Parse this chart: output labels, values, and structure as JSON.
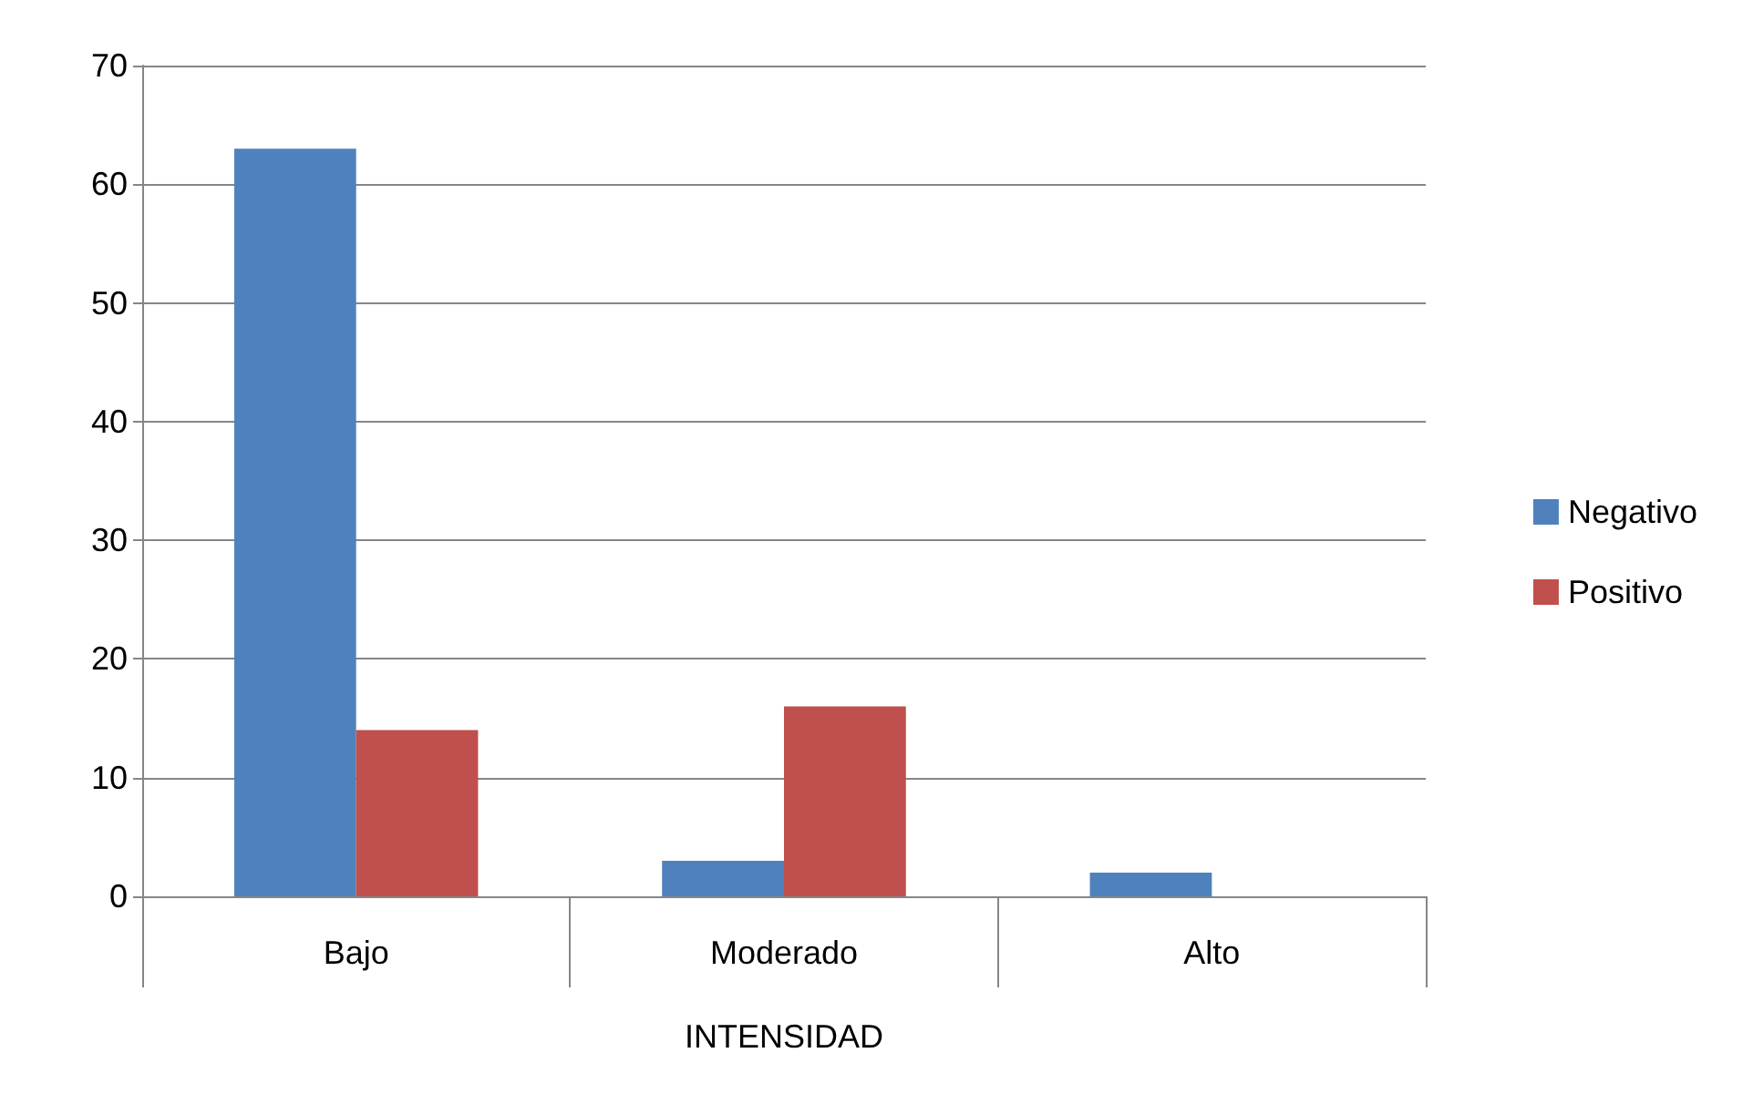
{
  "chart_data": {
    "type": "bar",
    "xlabel": "INTENSIDAD",
    "categories": [
      "Bajo",
      "Moderado",
      "Alto"
    ],
    "series": [
      {
        "name": "Negativo",
        "color": "#4f81bd",
        "values": [
          63,
          3,
          2
        ]
      },
      {
        "name": "Positivo",
        "color": "#c0504d",
        "values": [
          14,
          16,
          0
        ]
      }
    ],
    "ylim": [
      0,
      70
    ],
    "yticks": [
      0,
      10,
      20,
      30,
      40,
      50,
      60,
      70
    ],
    "grid": "y",
    "legend": "right"
  }
}
